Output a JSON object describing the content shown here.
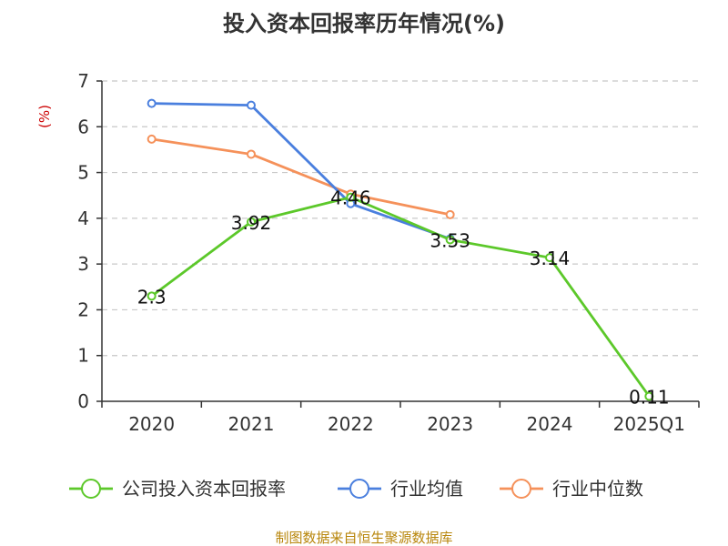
{
  "chart_data": {
    "type": "line",
    "title": "投入资本回报率历年情况(%)",
    "xlabel": "",
    "ylabel": "(%)",
    "categories": [
      "2020",
      "2021",
      "2022",
      "2023",
      "2024",
      "2025Q1"
    ],
    "ylim": [
      0,
      7
    ],
    "yticks": [
      "0",
      "1",
      "2",
      "3",
      "4",
      "5",
      "6",
      "7"
    ],
    "grid": true,
    "legend_position": "bottom",
    "series": [
      {
        "name": "公司投入资本回报率",
        "color": "#5cc82a",
        "values": [
          2.3,
          3.92,
          4.46,
          3.53,
          3.14,
          0.11
        ],
        "labels": [
          "2.3",
          "3.92",
          "4.46",
          "3.53",
          "3.14",
          "0.11"
        ]
      },
      {
        "name": "行业均值",
        "color": "#4a7fde",
        "values": [
          6.51,
          6.47,
          4.32,
          3.55,
          null,
          null
        ]
      },
      {
        "name": "行业中位数",
        "color": "#f5915a",
        "values": [
          5.73,
          5.4,
          4.53,
          4.08,
          null,
          null
        ]
      }
    ]
  },
  "source": "制图数据来自恒生聚源数据库"
}
